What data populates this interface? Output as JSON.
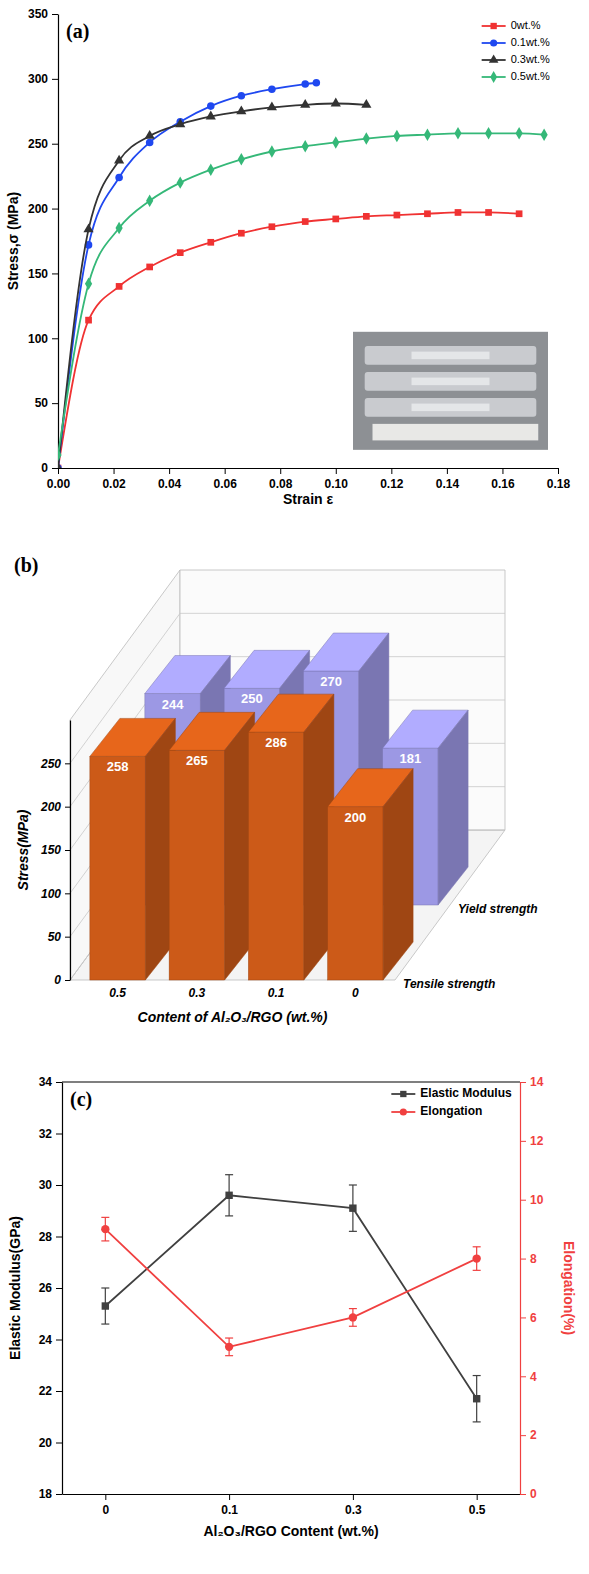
{
  "chart_data": [
    {
      "type": "line",
      "title": "(a)",
      "xlabel": "Strain ε",
      "ylabel": "Stress,σ (MPa)",
      "xlim": [
        0,
        0.18
      ],
      "xticks": [
        {
          "value": 0,
          "label": "0.00"
        },
        {
          "value": 0.02,
          "label": "0.02"
        },
        {
          "value": 0.04,
          "label": "0.04"
        },
        {
          "value": 0.06,
          "label": "0.06"
        },
        {
          "value": 0.08,
          "label": "0.08"
        },
        {
          "value": 0.1,
          "label": "0.10"
        },
        {
          "value": 0.12,
          "label": "0.12"
        },
        {
          "value": 0.14,
          "label": "0.14"
        },
        {
          "value": 0.16,
          "label": "0.16"
        },
        {
          "value": 0.18,
          "label": "0.18"
        }
      ],
      "ylim": [
        0,
        350
      ],
      "yticks": [
        0,
        50,
        100,
        150,
        200,
        250,
        300,
        350
      ],
      "legend": "upper right",
      "series": [
        {
          "name": "0wt.%",
          "color": "#f03232",
          "marker": "square",
          "x": [
            0,
            0.011,
            0.022,
            0.033,
            0.044,
            0.055,
            0.066,
            0.077,
            0.089,
            0.1,
            0.111,
            0.122,
            0.133,
            0.144,
            0.155,
            0.166
          ],
          "values": [
            0,
            114,
            140,
            155,
            166,
            174,
            181,
            186,
            190,
            192,
            194,
            195,
            196,
            197,
            197,
            196
          ]
        },
        {
          "name": "0.1wt.%",
          "color": "#1f48f0",
          "marker": "circle",
          "x": [
            0,
            0.011,
            0.022,
            0.033,
            0.044,
            0.055,
            0.066,
            0.077,
            0.089,
            0.093
          ],
          "values": [
            0,
            172,
            224,
            251,
            267,
            279,
            287,
            292,
            296,
            297
          ]
        },
        {
          "name": "0.3wt.%",
          "color": "#333333",
          "marker": "triangle",
          "x": [
            0,
            0.011,
            0.022,
            0.033,
            0.044,
            0.055,
            0.066,
            0.077,
            0.089,
            0.1,
            0.111
          ],
          "values": [
            0,
            184,
            237,
            256,
            265,
            271,
            275,
            278,
            280,
            281,
            280
          ]
        },
        {
          "name": "0.5wt.%",
          "color": "#35b878",
          "marker": "diamond",
          "x": [
            0,
            0.011,
            0.022,
            0.033,
            0.044,
            0.055,
            0.066,
            0.077,
            0.089,
            0.1,
            0.111,
            0.122,
            0.133,
            0.144,
            0.155,
            0.166,
            0.175
          ],
          "values": [
            10,
            142,
            185,
            206,
            220,
            230,
            238,
            244,
            248,
            251,
            254,
            256,
            257,
            258,
            258,
            258,
            257
          ]
        }
      ]
    },
    {
      "type": "bar",
      "title": "(b)",
      "xlabel": "Content of Al₂O₃/RGO (wt.%)",
      "ylabel": "Stress(MPa)",
      "categories": [
        "0.5",
        "0.3",
        "0.1",
        "0"
      ],
      "ylim": [
        0,
        300
      ],
      "yticks": [
        0,
        50,
        100,
        150,
        200,
        250
      ],
      "grid": true,
      "data_labels": true,
      "series": [
        {
          "name": "Tensile strength",
          "color": "#cc5a18",
          "values": [
            258,
            265,
            286,
            200
          ]
        },
        {
          "name": "Yield strength",
          "color": "#9c98e4",
          "values": [
            244,
            250,
            270,
            181
          ]
        }
      ]
    },
    {
      "type": "line",
      "title": "(c)",
      "xlabel": "Al₂O₃/RGO Content (wt.%)",
      "ylabel": "Elastic Modulus(GPa)",
      "y2label": "Elongation(%)",
      "categories": [
        "0",
        "0.1",
        "0.3",
        "0.5"
      ],
      "ylim": [
        18,
        34
      ],
      "yticks": [
        18,
        20,
        22,
        24,
        26,
        28,
        30,
        32,
        34
      ],
      "y2lim": [
        0,
        14
      ],
      "y2ticks": [
        0,
        2,
        4,
        6,
        8,
        10,
        12,
        14
      ],
      "legend": "upper right",
      "series": [
        {
          "name": "Elastic Modulus",
          "color": "#404040",
          "marker": "square",
          "values": [
            25.3,
            29.6,
            29.1,
            21.7
          ],
          "errors": [
            0.7,
            0.8,
            0.9,
            0.9
          ]
        },
        {
          "name": "Elongation",
          "color": "#f04040",
          "marker": "circle",
          "axis": "y2",
          "values": [
            9,
            5,
            6,
            8
          ],
          "errors": [
            0.4,
            0.3,
            0.3,
            0.4
          ]
        }
      ]
    }
  ]
}
